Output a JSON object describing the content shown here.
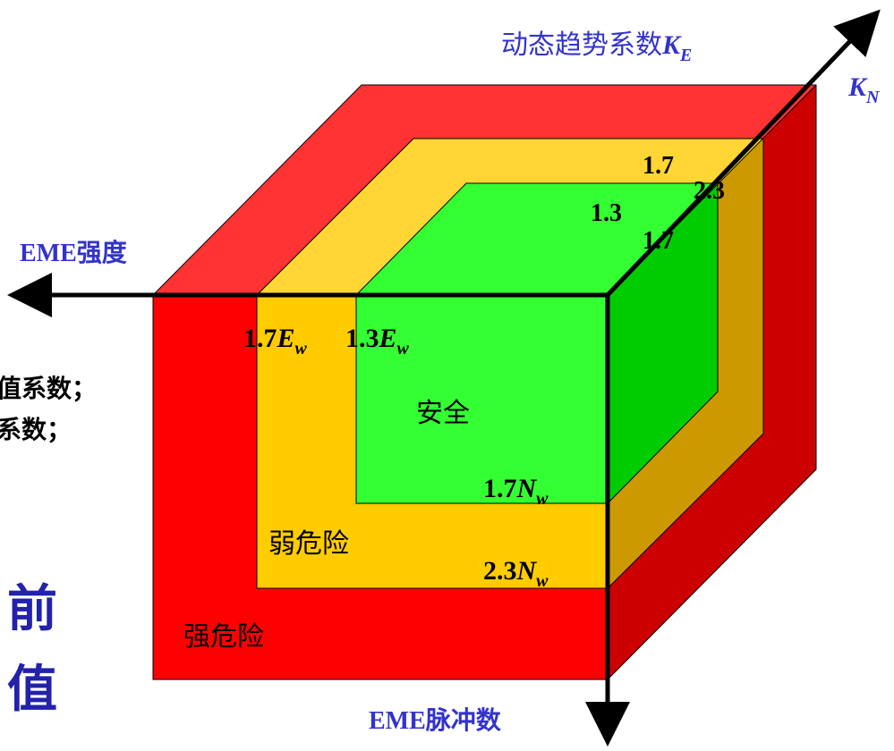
{
  "colors": {
    "red_front": "#ff0000",
    "red_top": "#ff3333",
    "red_side": "#cc0000",
    "yellow_front": "#ffcc00",
    "yellow_top": "#ffd633",
    "yellow_side": "#cc9900",
    "green_front": "#33ff33",
    "green_top": "#33ff33",
    "green_side": "#00cc00",
    "blue_text": "#3333cc",
    "dark_blue_text": "#2222aa",
    "axis": "#000000"
  },
  "axes": {
    "ke_label": "动态趋势系数",
    "ke_symbol": "K",
    "ke_sub": "E",
    "kn_symbol": "K",
    "kn_sub": "N",
    "intensity_label": "EME强度",
    "pulse_label": "EME脉冲数"
  },
  "zones": {
    "safe": "安全",
    "weak": "弱危险",
    "strong": "强危险"
  },
  "thresholds": {
    "e_outer_coef": "1.7",
    "e_inner_coef": "1.3",
    "e_symbol": "E",
    "e_sub": "w",
    "n_inner_coef": "1.7",
    "n_outer_coef": "2.3",
    "n_symbol": "N",
    "n_sub": "w",
    "k_top_a": "1.7",
    "k_top_b": "2.3",
    "k_inner_a": "1.3",
    "k_inner_b": "1.7"
  },
  "left_fragments": {
    "line1": "值系数；",
    "line2": "系数；",
    "big1": "前",
    "big2": "值"
  }
}
